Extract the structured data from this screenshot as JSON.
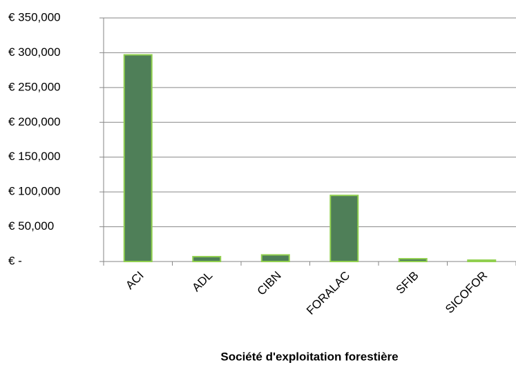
{
  "chart_data": {
    "type": "bar",
    "x_label": "Société d'exploitation forestière",
    "categories": [
      "ACI",
      "ADL",
      "CIBN",
      "FORALAC",
      "SFIB",
      "SICOFOR"
    ],
    "values": [
      297000,
      7000,
      9500,
      95000,
      4000,
      2000
    ],
    "color": "#4f7f58",
    "edge_color": "#92d050",
    "ylim": [
      0,
      350000
    ],
    "yticks": [
      {
        "value": 0,
        "label": "€ -"
      },
      {
        "value": 50000,
        "label": "€ 50,000"
      },
      {
        "value": 100000,
        "label": "€ 100,000"
      },
      {
        "value": 150000,
        "label": "€ 150,000"
      },
      {
        "value": 200000,
        "label": "€ 200,000"
      },
      {
        "value": 250000,
        "label": "€ 250,000"
      },
      {
        "value": 300000,
        "label": "€ 300,000"
      },
      {
        "value": 350000,
        "label": "€ 350,000"
      }
    ],
    "grid": true
  }
}
